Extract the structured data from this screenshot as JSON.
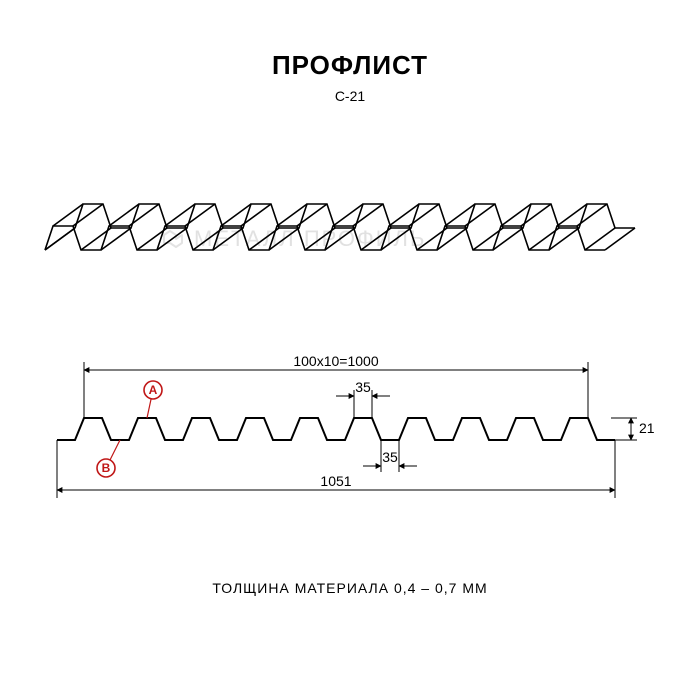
{
  "title": {
    "text": "ПРОФЛИСТ",
    "fontsize": 26,
    "color": "#000000"
  },
  "subtitle": {
    "text": "С-21",
    "fontsize": 14,
    "color": "#000000"
  },
  "footer": {
    "text": "ТОЛЩИНА МАТЕРИАЛА 0,4 – 0,7 ММ",
    "fontsize": 14,
    "color": "#000000"
  },
  "watermark": {
    "text": "МЕТАЛЛ ПРОФИЛЬ",
    "color": "#e1e1e1"
  },
  "colors": {
    "stroke": "#000000",
    "dim": "#000000",
    "marker": "#c01717",
    "bg": "#ffffff"
  },
  "isometric": {
    "waves": 10,
    "period": 56,
    "top_w": 20,
    "bot_w": 20,
    "height": 24,
    "iso_dx": 30,
    "iso_dy": -22,
    "line_width": 1.6
  },
  "technical": {
    "waves": 10,
    "period": 54,
    "top_w": 18,
    "bot_w": 18,
    "height": 22,
    "line_width": 2,
    "dim_font": 14,
    "dims": {
      "top_span": "100х10=1000",
      "full_width": "1051",
      "segment_top": "35",
      "segment_bot": "35",
      "profile_h": "21"
    },
    "markers": {
      "A": "A",
      "B": "B"
    }
  }
}
